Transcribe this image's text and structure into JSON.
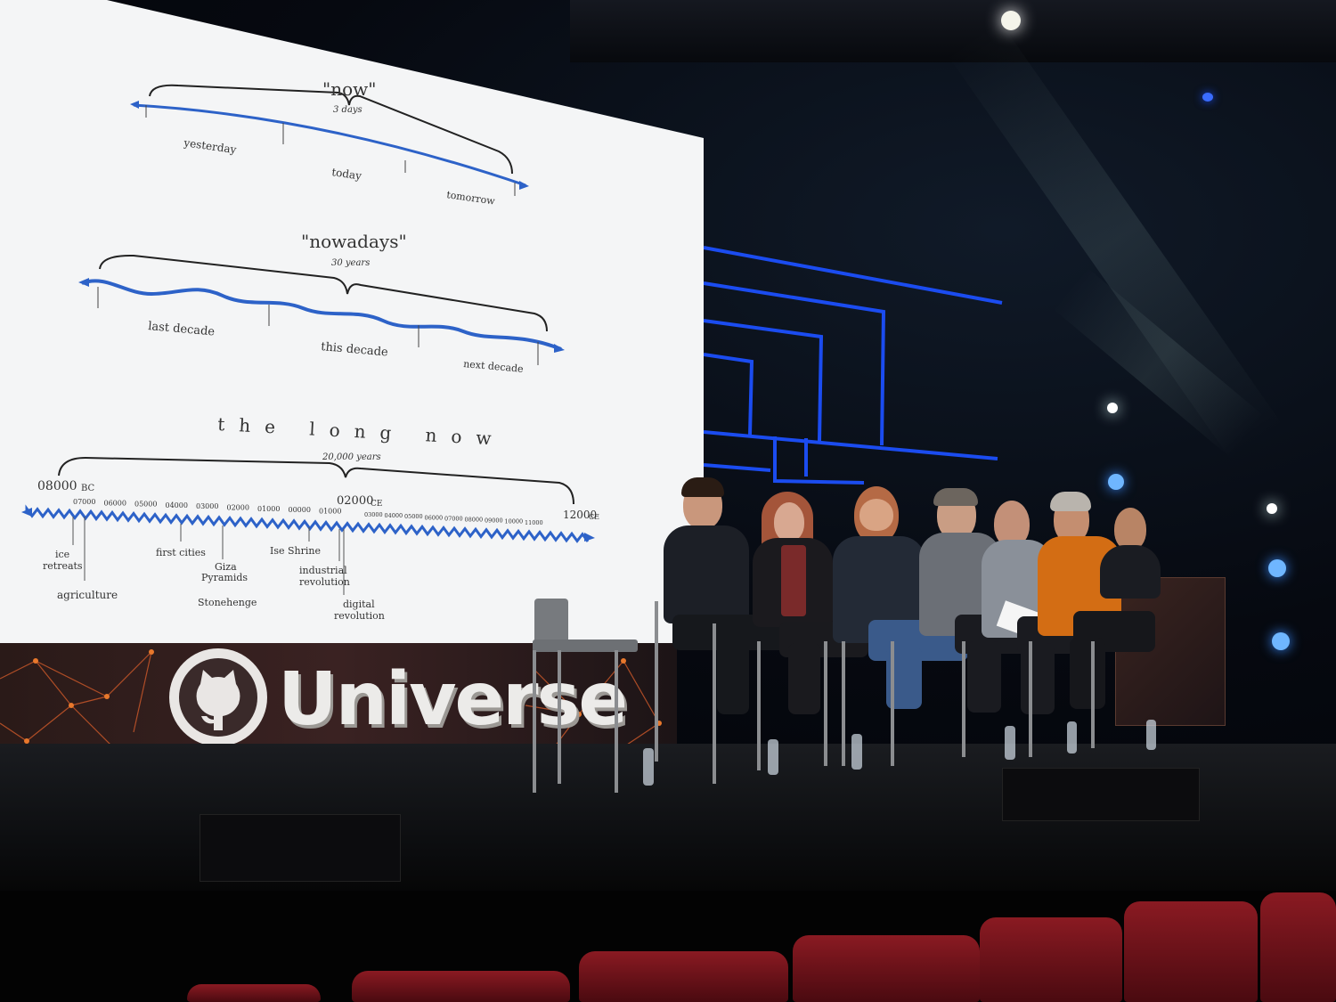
{
  "slide": {
    "now": {
      "title": "\"now\"",
      "span": "3 days",
      "labels": [
        "yesterday",
        "today",
        "tomorrow"
      ]
    },
    "nowadays": {
      "title": "\"nowadays\"",
      "span": "30 years",
      "labels": [
        "last decade",
        "this decade",
        "next decade"
      ]
    },
    "long_now": {
      "title": "the long now",
      "span": "20,000 years",
      "start": "08000",
      "start_era": "BC",
      "mid": "02000",
      "mid_era": "CE",
      "end": "12000",
      "end_era": "CE",
      "ticks_before": [
        "07000",
        "06000",
        "05000",
        "04000",
        "03000",
        "02000",
        "01000",
        "00000",
        "01000"
      ],
      "ticks_after": [
        "03000",
        "04000",
        "05000",
        "06000",
        "07000",
        "08000",
        "09000",
        "10000",
        "11000"
      ],
      "events": {
        "ice": "ice",
        "retreats": "retreats",
        "agriculture": "agriculture",
        "first_cities": "first cities",
        "giza": "Giza",
        "pyramids": "Pyramids",
        "stonehenge": "Stonehenge",
        "ise_shrine": "Ise Shrine",
        "industrial": "industrial",
        "revolution1": "revolution",
        "digital": "digital",
        "revolution2": "revolution"
      }
    }
  },
  "banner": {
    "brand": "Universe",
    "logo_icon": "octocat-logo-icon"
  },
  "colors": {
    "timeline_blue": "#2d62c8",
    "screen": "#f4f5f6",
    "neon": "#1b4cf0",
    "seat_red": "#8a1a22"
  }
}
